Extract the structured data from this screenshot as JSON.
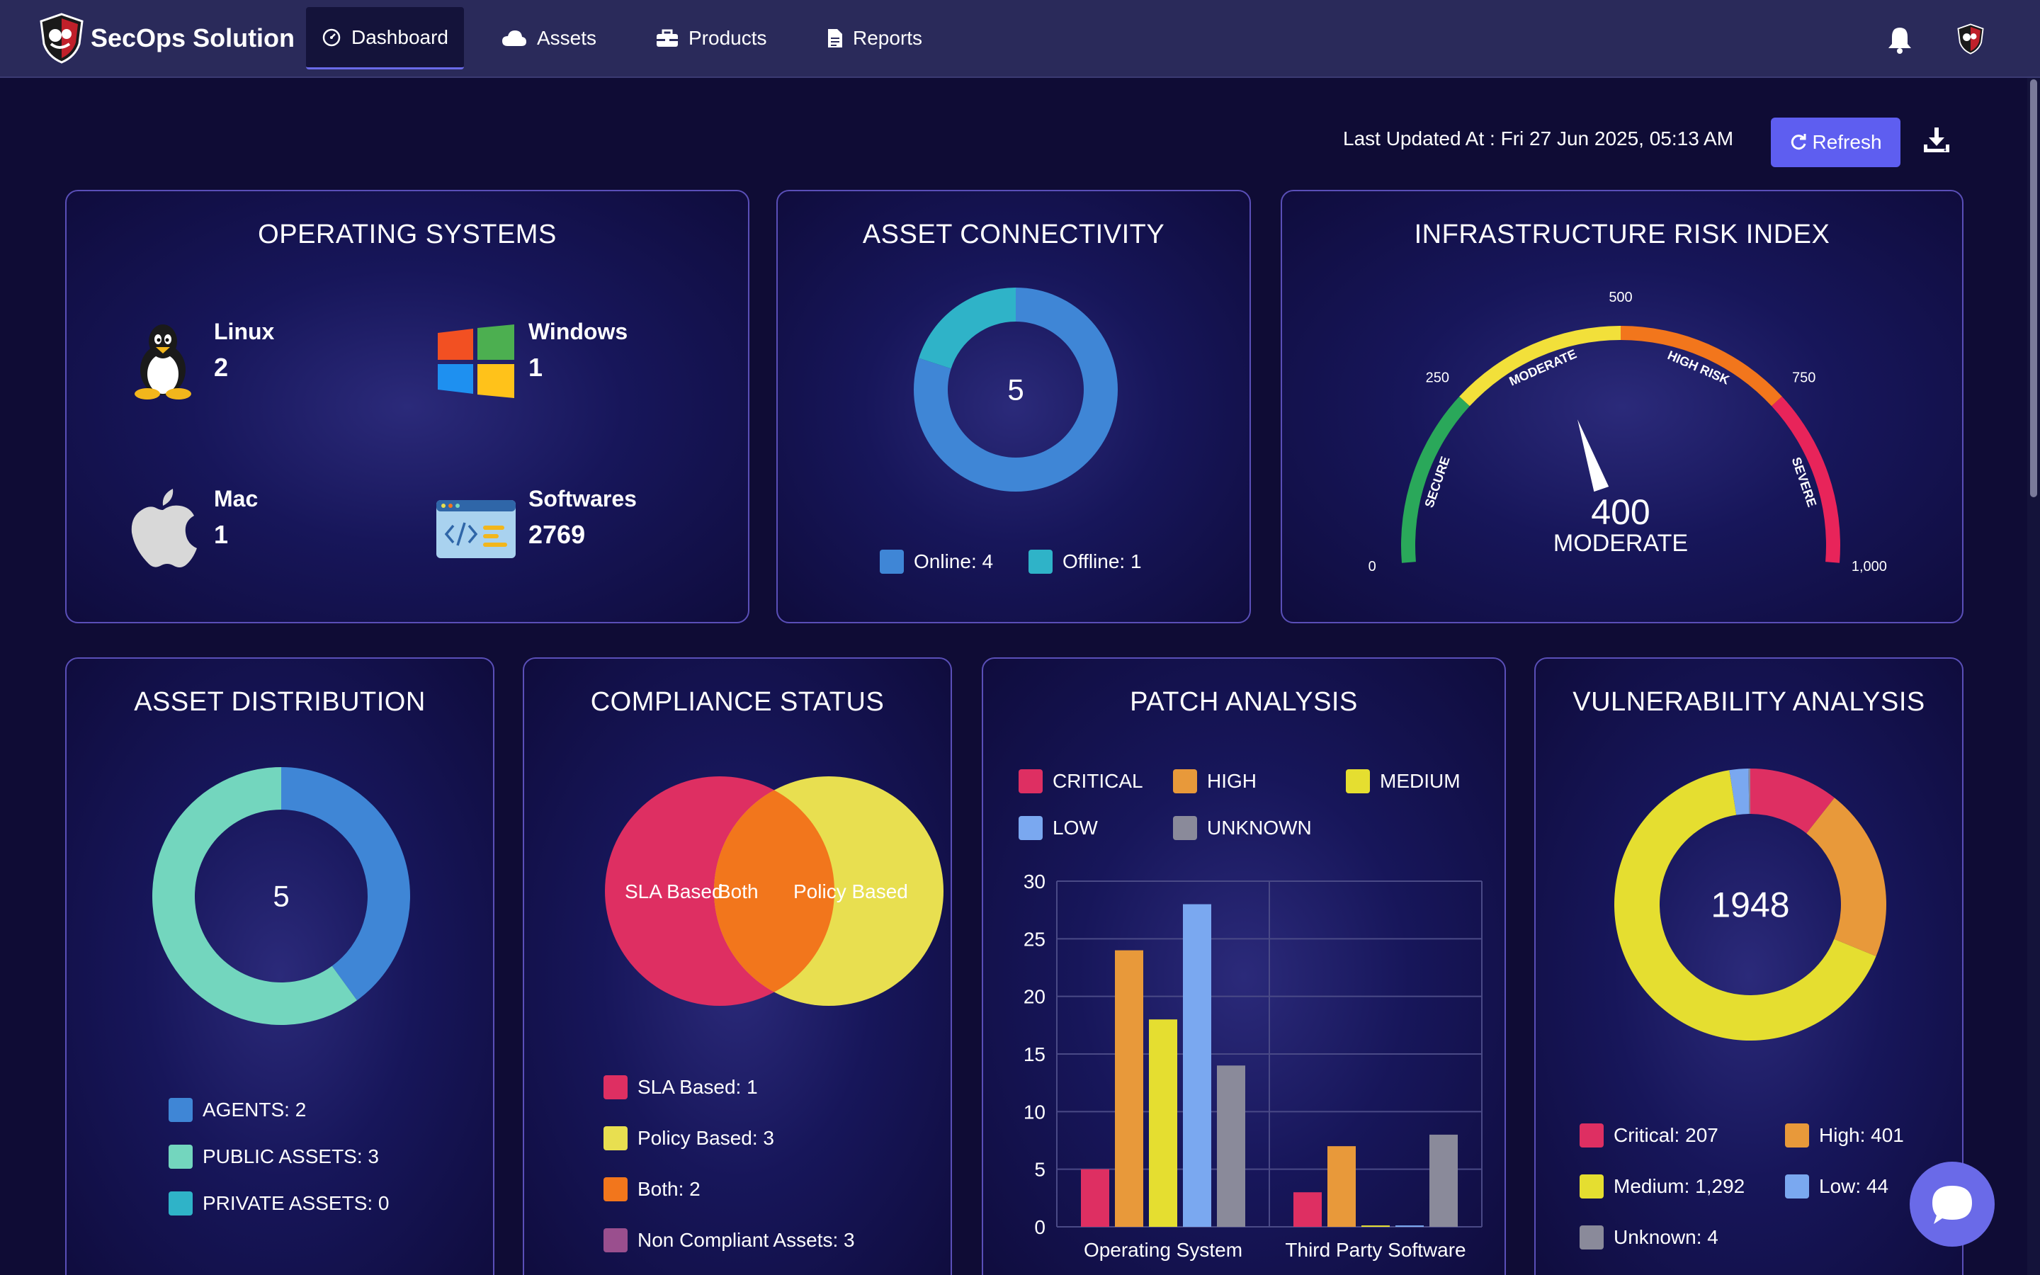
{
  "nav": {
    "brand": "SecOps Solution",
    "items": [
      {
        "label": "Dashboard",
        "icon": "gauge-icon",
        "active": true
      },
      {
        "label": "Assets",
        "icon": "cloud-icon"
      },
      {
        "label": "Products",
        "icon": "toolbox-icon"
      },
      {
        "label": "Reports",
        "icon": "document-icon"
      }
    ]
  },
  "toolbar": {
    "last_updated": "Last Updated At : Fri 27 Jun 2025, 05:13 AM",
    "refresh_label": "Refresh"
  },
  "operating_systems": {
    "title": "OPERATING SYSTEMS",
    "items": [
      {
        "name": "Linux",
        "count": "2",
        "icon": "linux-icon"
      },
      {
        "name": "Windows",
        "count": "1",
        "icon": "windows-icon"
      },
      {
        "name": "Mac",
        "count": "1",
        "icon": "apple-icon"
      },
      {
        "name": "Softwares",
        "count": "2769",
        "icon": "code-window-icon"
      }
    ]
  },
  "asset_connectivity": {
    "title": "ASSET CONNECTIVITY",
    "total": "5",
    "legend": [
      "Online: 4",
      "Offline: 1"
    ],
    "colors": [
      "#3f86d6",
      "#2fb3c8"
    ]
  },
  "risk_index": {
    "title": "INFRASTRUCTURE RISK INDEX",
    "value": "400",
    "level": "MODERATE",
    "ticks": [
      "0",
      "250",
      "500",
      "750",
      "1,000"
    ],
    "bands": [
      "SECURE",
      "MODERATE",
      "HIGH RISK",
      "SEVERE"
    ],
    "band_colors": [
      "#2aa85a",
      "#f2e03a",
      "#f2761c",
      "#e8245a"
    ]
  },
  "asset_distribution": {
    "title": "ASSET DISTRIBUTION",
    "total": "5",
    "legend": [
      "AGENTS: 2",
      "PUBLIC ASSETS: 3",
      "PRIVATE ASSETS: 0"
    ],
    "colors": [
      "#3f86d6",
      "#73d6be",
      "#2fb3c8"
    ]
  },
  "compliance": {
    "title": "COMPLIANCE STATUS",
    "venn_left": "SLA Based",
    "venn_both": "Both",
    "venn_right": "Policy Based",
    "legend": [
      "SLA Based: 1",
      "Policy Based: 3",
      "Both: 2",
      "Non Compliant Assets: 3"
    ],
    "colors": [
      "#de2f62",
      "#e8df50",
      "#f2761c",
      "#9a4f8e"
    ]
  },
  "patch": {
    "title": "PATCH ANALYSIS",
    "legend": [
      "CRITICAL",
      "HIGH",
      "MEDIUM",
      "LOW",
      "UNKNOWN"
    ],
    "colors": [
      "#de2f62",
      "#e8993a",
      "#e5de30",
      "#7aa8f0",
      "#8a8a9a"
    ]
  },
  "vulnerability": {
    "title": "VULNERABILITY ANALYSIS",
    "total": "1948",
    "legend": [
      "Critical: 207",
      "High: 401",
      "Medium: 1,292",
      "Low: 44",
      "Unknown: 4"
    ],
    "colors": [
      "#de2f62",
      "#e8993a",
      "#e5de30",
      "#7aa8f0",
      "#8a8a9a"
    ]
  },
  "chart_data": [
    {
      "type": "pie",
      "labels": [
        "Online",
        "Offline"
      ],
      "values": [
        4,
        1
      ]
    },
    {
      "type": "pie",
      "labels": [
        "AGENTS",
        "PUBLIC ASSETS",
        "PRIVATE ASSETS"
      ],
      "values": [
        2,
        3,
        0
      ]
    },
    {
      "type": "bar",
      "title": "PATCH ANALYSIS",
      "categories": [
        "Operating System",
        "Third Party Software"
      ],
      "series": [
        {
          "name": "CRITICAL",
          "values": [
            5,
            3
          ]
        },
        {
          "name": "HIGH",
          "values": [
            24,
            7
          ]
        },
        {
          "name": "MEDIUM",
          "values": [
            18,
            0
          ]
        },
        {
          "name": "LOW",
          "values": [
            28,
            0
          ]
        },
        {
          "name": "UNKNOWN",
          "values": [
            14,
            8
          ]
        }
      ],
      "ylim": [
        0,
        30
      ],
      "yticks": [
        "0",
        "5",
        "10",
        "15",
        "20",
        "25",
        "30"
      ]
    },
    {
      "type": "pie",
      "labels": [
        "Critical",
        "High",
        "Medium",
        "Low",
        "Unknown"
      ],
      "values": [
        207,
        401,
        1292,
        44,
        4
      ]
    }
  ]
}
